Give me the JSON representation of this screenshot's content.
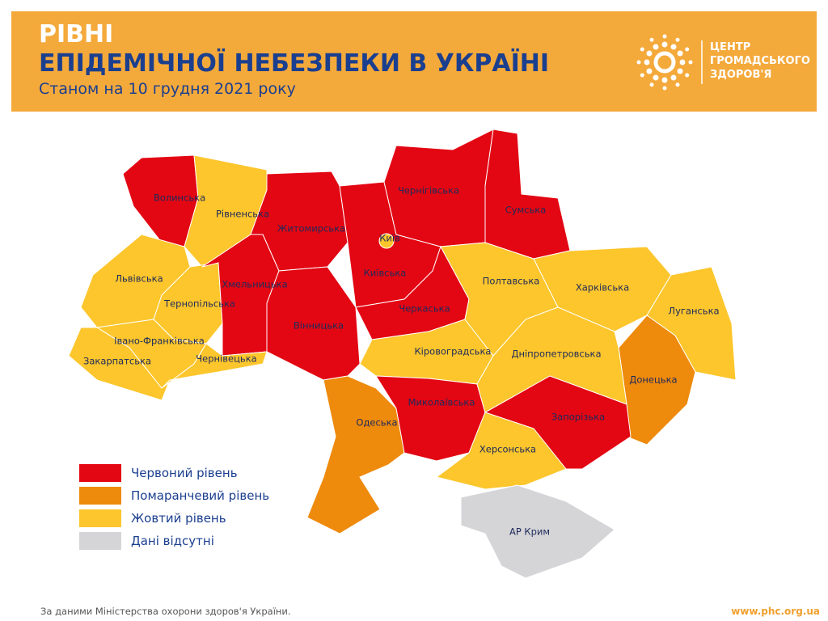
{
  "header": {
    "title_line1": "РІВНІ",
    "title_line2": "ЕПІДЕМІЧНОЇ НЕБЕЗПЕКИ В УКРАЇНІ",
    "subtitle": "Станом на 10 грудня 2021 року",
    "logo_lines": [
      "ЦЕНТР",
      "ГРОМАДСЬКОГО",
      "ЗДОРОВ'Я"
    ]
  },
  "legend": [
    {
      "label": "Червоний рівень",
      "color": "#e30613"
    },
    {
      "label": "Помаранчевий рівень",
      "color": "#ee8a0c"
    },
    {
      "label": "Жовтий рівень",
      "color": "#fcc62c"
    },
    {
      "label": "Дані відсутні",
      "color": "#d5d5d8"
    }
  ],
  "regions": [
    {
      "label": "Волинська",
      "color": "#e30613"
    },
    {
      "label": "Рівненська",
      "color": "#fcc62c"
    },
    {
      "label": "Житомирська",
      "color": "#e30613"
    },
    {
      "label": "Київська",
      "color": "#e30613"
    },
    {
      "label": "Чернігівська",
      "color": "#e30613"
    },
    {
      "label": "Сумська",
      "color": "#e30613"
    },
    {
      "label": "Львівська",
      "color": "#fcc62c"
    },
    {
      "label": "Тернопільська",
      "color": "#fcc62c"
    },
    {
      "label": "Хмельницька",
      "color": "#e30613"
    },
    {
      "label": "Івано-Франківська",
      "color": "#fcc62c"
    },
    {
      "label": "Закарпатська",
      "color": "#fcc62c"
    },
    {
      "label": "Чернівецька",
      "color": "#fcc62c"
    },
    {
      "label": "Вінницька",
      "color": "#e30613"
    },
    {
      "label": "Черкаська",
      "color": "#e30613"
    },
    {
      "label": "Одеська",
      "color": "#ee8a0c"
    },
    {
      "label": "Кіровоградська",
      "color": "#fcc62c"
    },
    {
      "label": "Миколаївська",
      "color": "#e30613"
    },
    {
      "label": "Полтавська",
      "color": "#fcc62c"
    },
    {
      "label": "Харківська",
      "color": "#fcc62c"
    },
    {
      "label": "Луганська",
      "color": "#fcc62c"
    },
    {
      "label": "Донецька",
      "color": "#ee8a0c"
    },
    {
      "label": "Дніпропетровська",
      "color": "#fcc62c"
    },
    {
      "label": "Запорізька",
      "color": "#e30613"
    },
    {
      "label": "Херсонська",
      "color": "#fcc62c"
    },
    {
      "label": "АР Крим",
      "color": "#d5d5d8"
    },
    {
      "label": "Київ",
      "color": "#fcc62c"
    }
  ],
  "footer": {
    "source": "За даними Міністерства охорони здоров'я України.",
    "url": "www.phc.org.ua"
  }
}
